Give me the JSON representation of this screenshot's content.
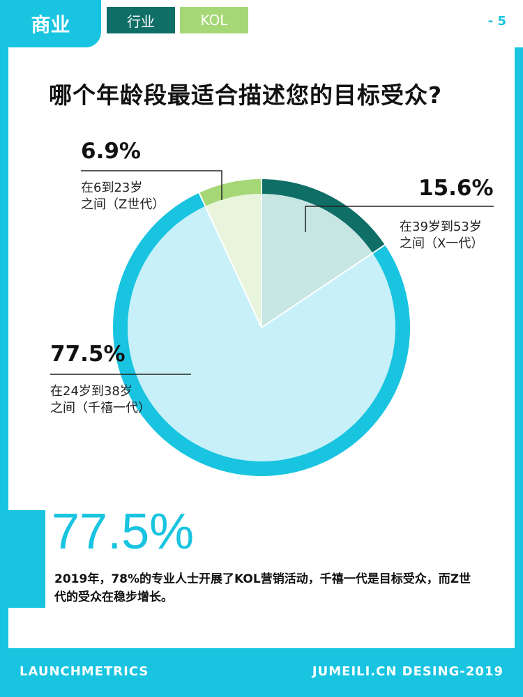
{
  "header": {
    "tab_main": "商业",
    "tab_industry": "行业",
    "tab_kol": "KOL",
    "page_number": "- 5"
  },
  "colors": {
    "accent": "#18c4e0",
    "dark_green": "#0f6e66",
    "light_green": "#a6d776"
  },
  "chart_data": {
    "type": "pie",
    "title": "哪个年龄段最适合描述您的目标受众?",
    "slices": [
      {
        "label": "在39岁到53岁之间（X一代）",
        "value": 15.6,
        "pct_text": "15.6%",
        "line1": "在39岁到53岁",
        "line2": "之间（X一代）",
        "ring_color": "#0f6e66",
        "fill_color": "#c7e5e3"
      },
      {
        "label": "在24岁到38岁之间（千禧一代）",
        "value": 77.5,
        "pct_text": "77.5%",
        "line1": "在24岁到38岁",
        "line2": "之间（千禧一代）",
        "ring_color": "#18c4e0",
        "fill_color": "#c8f0f8"
      },
      {
        "label": "在6到23岁之间（Z世代）",
        "value": 6.9,
        "pct_text": "6.9%",
        "line1": "在6到23岁",
        "line2": "之间（Z世代）",
        "ring_color": "#a6d776",
        "fill_color": "#e8f4dc"
      }
    ]
  },
  "highlight": {
    "big_pct": "77.5%",
    "note": "2019年，78%的专业人士开展了KOL营销活动，千禧一代是目标受众，而Z世代的受众在稳步增长。"
  },
  "footer": {
    "left": "LAUNCHMETRICS",
    "right": "JUMEILI.CN DESING-2019"
  }
}
